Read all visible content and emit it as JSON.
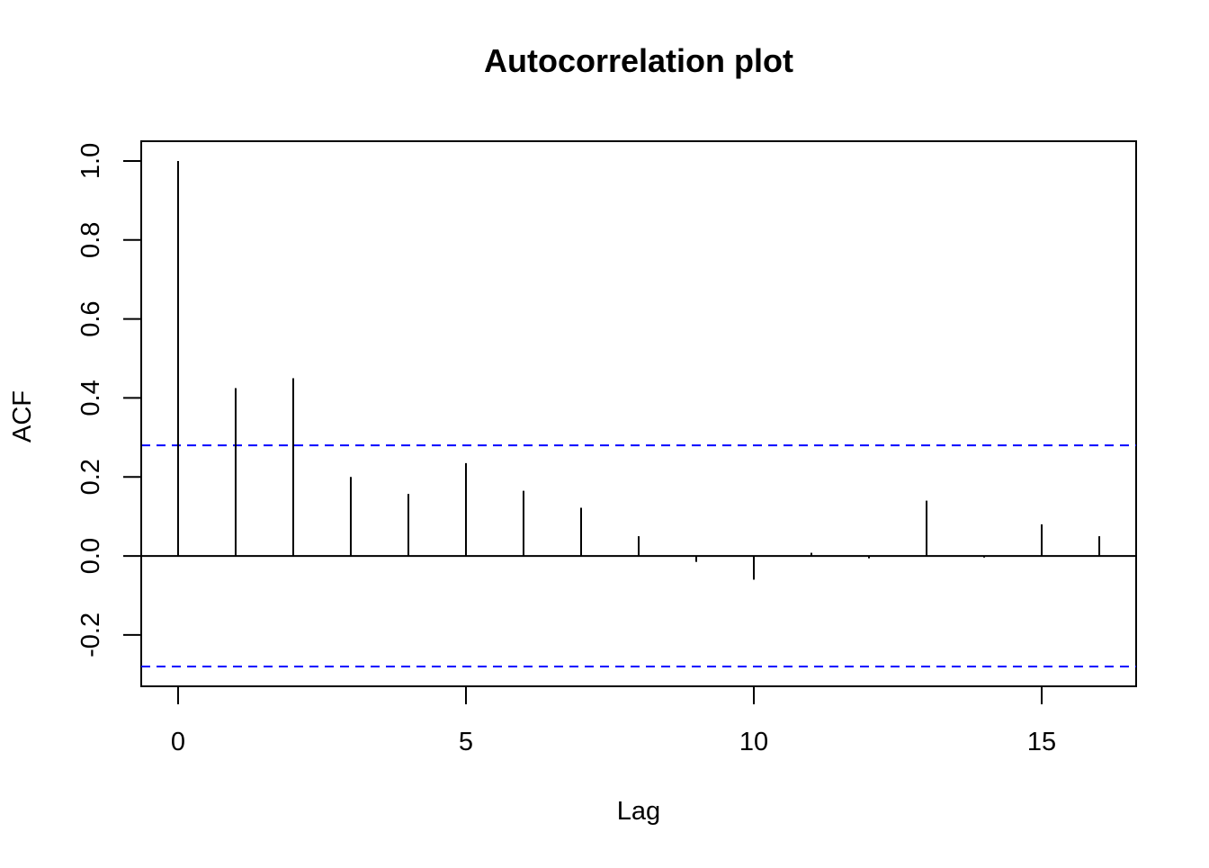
{
  "chart_data": {
    "type": "bar",
    "title": "Autocorrelation plot",
    "xlabel": "Lag",
    "ylabel": "ACF",
    "x": [
      0,
      1,
      2,
      3,
      4,
      5,
      6,
      7,
      8,
      9,
      10,
      11,
      12,
      13,
      14,
      15,
      16
    ],
    "values": [
      1.0,
      0.425,
      0.45,
      0.2,
      0.157,
      0.235,
      0.165,
      0.122,
      0.05,
      -0.015,
      -0.06,
      0.008,
      -0.006,
      0.14,
      -0.004,
      0.08,
      0.05
    ],
    "xlim": [
      -0.64,
      16.64
    ],
    "ylim": [
      -0.33,
      1.05
    ],
    "x_ticks": [
      "0",
      "5",
      "10",
      "15"
    ],
    "y_ticks": [
      "-0.2",
      "0.0",
      "0.2",
      "0.4",
      "0.6",
      "0.8",
      "1.0"
    ],
    "confidence_bounds": [
      0.28,
      -0.28
    ],
    "zero_line": 0,
    "grid": false,
    "legend": "none",
    "colors": {
      "bars": "#000000",
      "confidence_lines": "#0000ff",
      "frame": "#000000"
    }
  }
}
